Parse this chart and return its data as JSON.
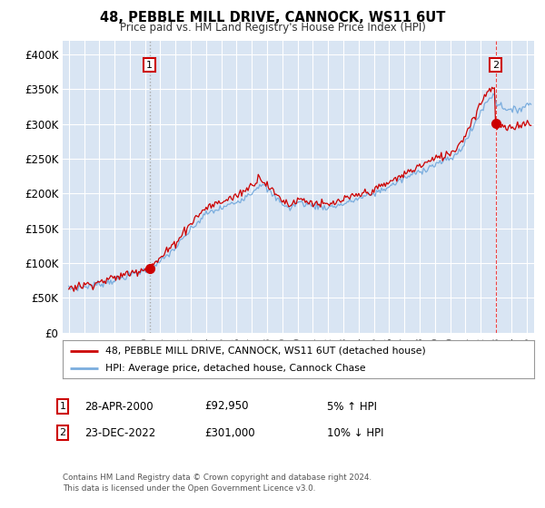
{
  "title1": "48, PEBBLE MILL DRIVE, CANNOCK, WS11 6UT",
  "title2": "Price paid vs. HM Land Registry's House Price Index (HPI)",
  "background_color": "#dce6f1",
  "plot_bg_color": "#d9e5f3",
  "red_color": "#cc0000",
  "blue_color": "#7aadde",
  "ann1_vline_color": "#aaaaaa",
  "ann1_vline_style": "dotted",
  "ann2_vline_color": "#ee4444",
  "ann2_vline_style": "dashed",
  "annotation1_date": "28-APR-2000",
  "annotation1_price": "£92,950",
  "annotation1_hpi": "5% ↑ HPI",
  "annotation1_year": 2000.3,
  "annotation1_value": 92950,
  "annotation2_date": "23-DEC-2022",
  "annotation2_price": "£301,000",
  "annotation2_hpi": "10% ↓ HPI",
  "annotation2_year": 2022.97,
  "annotation2_value": 301000,
  "legend_label1": "48, PEBBLE MILL DRIVE, CANNOCK, WS11 6UT (detached house)",
  "legend_label2": "HPI: Average price, detached house, Cannock Chase",
  "footer1": "Contains HM Land Registry data © Crown copyright and database right 2024.",
  "footer2": "This data is licensed under the Open Government Licence v3.0.",
  "ylim_max": 420000,
  "yticks": [
    0,
    50000,
    100000,
    150000,
    200000,
    250000,
    300000,
    350000,
    400000
  ],
  "xlim_min": 1994.6,
  "xlim_max": 2025.5
}
